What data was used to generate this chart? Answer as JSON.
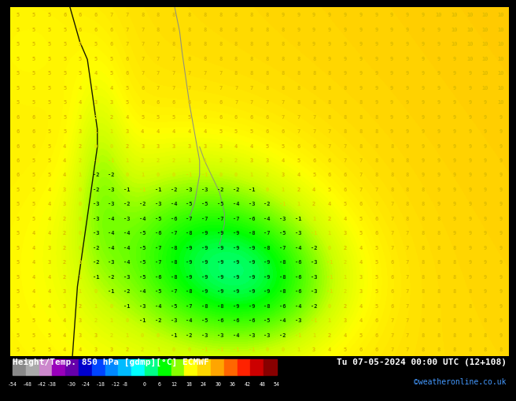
{
  "title_left": "Height/Temp. 850 hPa [gdmp][°C] ECMWF",
  "title_right": "Tu 07-05-2024 00:00 UTC (12+108)",
  "credit": "©weatheronline.co.uk",
  "bg_color": "#000000",
  "map_bg": "#FFB300",
  "colorbar_segments": [
    [
      "#888888",
      "#AAAAAA"
    ],
    [
      "#CC88CC",
      "#AA44AA"
    ],
    [
      "#8800BB",
      "#6600AA"
    ],
    [
      "#0000BB",
      "#000088"
    ],
    [
      "#0044FF",
      "#0022CC"
    ],
    [
      "#0088FF",
      "#0066CC"
    ],
    [
      "#00CCFF",
      "#00AACC"
    ],
    [
      "#00FFFF",
      "#00CCCC"
    ],
    [
      "#00FF88",
      "#00CC66"
    ],
    [
      "#00FF00",
      "#00CC00"
    ],
    [
      "#88FF00",
      "#66CC00"
    ],
    [
      "#CCFF00",
      "#AACC00"
    ],
    [
      "#FFFF00",
      "#CCCC00"
    ],
    [
      "#FFD700",
      "#CCAA00"
    ],
    [
      "#FFA500",
      "#CC8800"
    ],
    [
      "#FF6600",
      "#CC5500"
    ],
    [
      "#FF2200",
      "#CC1100"
    ],
    [
      "#CC0000",
      "#AA0000"
    ],
    [
      "#880000",
      "#660000"
    ]
  ],
  "cb_tick_labels": [
    "-54",
    "-48",
    "-42",
    "-38",
    "-30",
    "-24",
    "-18",
    "-12",
    "-8",
    "0",
    "6",
    "12",
    "18",
    "24",
    "30",
    "36",
    "42",
    "48",
    "54"
  ],
  "cb_tick_positions": [
    -54,
    -48,
    -42,
    -38,
    -30,
    -24,
    -18,
    -12,
    -8,
    0,
    6,
    12,
    18,
    24,
    30,
    36,
    42,
    48,
    54
  ],
  "vmin": -54,
  "vmax": 54,
  "orange_temp": 6,
  "green_temp": -2,
  "dark_green_temp": -5
}
